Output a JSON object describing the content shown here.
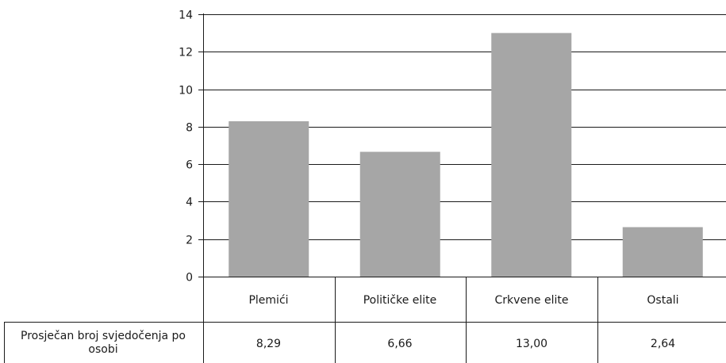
{
  "chart_data": {
    "type": "bar",
    "categories": [
      "Plemići",
      "Političke elite",
      "Crkvene elite",
      "Ostali"
    ],
    "series": [
      {
        "name": "Prosječan broj svjedočenja po osobi",
        "values": [
          8.29,
          6.66,
          13.0,
          2.64
        ]
      }
    ],
    "table_values": [
      "8,29",
      "6,66",
      "13,00",
      "2,64"
    ],
    "ylim": [
      0,
      14
    ],
    "yticks": [
      0,
      2,
      4,
      6,
      8,
      10,
      12,
      14
    ],
    "grid": true,
    "bar_color": "#a6a6a6",
    "title": "",
    "xlabel": "",
    "ylabel": ""
  }
}
